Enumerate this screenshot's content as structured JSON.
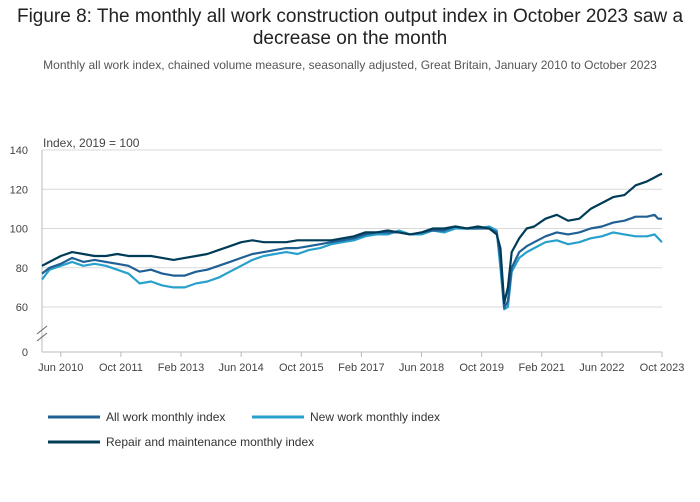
{
  "title": "Figure 8: The monthly all work construction output index in October 2023 saw a decrease on the month",
  "subtitle": "Monthly all work index, chained volume measure, seasonally adjusted, Great Britain, January 2010 to October 2023",
  "chart_data": {
    "type": "line",
    "ylabel": "Index, 2019 = 100",
    "ylim": [
      0,
      140
    ],
    "axis_break": [
      0,
      50
    ],
    "yticks": [
      0,
      60,
      80,
      100,
      120,
      140
    ],
    "x_start": "2010-01",
    "x_end": "2023-10",
    "xtick_labels": [
      "Jun 2010",
      "Oct 2011",
      "Feb 2013",
      "Jun 2014",
      "Oct 2015",
      "Feb 2017",
      "Jun 2018",
      "Oct 2019",
      "Feb 2021",
      "Jun 2022",
      "Oct 2023"
    ],
    "grid": "horizontal",
    "legend_position": "bottom",
    "series": [
      {
        "name": "All work monthly index",
        "color": "#206095",
        "points": [
          [
            "2010-01",
            77
          ],
          [
            "2010-03",
            80
          ],
          [
            "2010-06",
            82
          ],
          [
            "2010-09",
            85
          ],
          [
            "2010-12",
            83
          ],
          [
            "2011-03",
            84
          ],
          [
            "2011-06",
            83
          ],
          [
            "2011-09",
            82
          ],
          [
            "2011-12",
            81
          ],
          [
            "2012-03",
            78
          ],
          [
            "2012-06",
            79
          ],
          [
            "2012-09",
            77
          ],
          [
            "2012-12",
            76
          ],
          [
            "2013-03",
            76
          ],
          [
            "2013-06",
            78
          ],
          [
            "2013-09",
            79
          ],
          [
            "2013-12",
            81
          ],
          [
            "2014-03",
            83
          ],
          [
            "2014-06",
            85
          ],
          [
            "2014-09",
            87
          ],
          [
            "2014-12",
            88
          ],
          [
            "2015-03",
            89
          ],
          [
            "2015-06",
            90
          ],
          [
            "2015-09",
            90
          ],
          [
            "2015-12",
            91
          ],
          [
            "2016-03",
            92
          ],
          [
            "2016-06",
            93
          ],
          [
            "2016-09",
            94
          ],
          [
            "2016-12",
            95
          ],
          [
            "2017-03",
            97
          ],
          [
            "2017-06",
            98
          ],
          [
            "2017-09",
            98
          ],
          [
            "2017-12",
            98
          ],
          [
            "2018-03",
            97
          ],
          [
            "2018-06",
            98
          ],
          [
            "2018-09",
            99
          ],
          [
            "2018-12",
            99
          ],
          [
            "2019-03",
            101
          ],
          [
            "2019-06",
            100
          ],
          [
            "2019-09",
            100
          ],
          [
            "2019-12",
            100
          ],
          [
            "2020-02",
            98
          ],
          [
            "2020-03",
            85
          ],
          [
            "2020-04",
            58
          ],
          [
            "2020-05",
            63
          ],
          [
            "2020-06",
            80
          ],
          [
            "2020-08",
            88
          ],
          [
            "2020-10",
            91
          ],
          [
            "2020-12",
            93
          ],
          [
            "2021-03",
            96
          ],
          [
            "2021-06",
            98
          ],
          [
            "2021-09",
            97
          ],
          [
            "2021-12",
            98
          ],
          [
            "2022-03",
            100
          ],
          [
            "2022-06",
            101
          ],
          [
            "2022-09",
            103
          ],
          [
            "2022-12",
            104
          ],
          [
            "2023-03",
            106
          ],
          [
            "2023-06",
            106
          ],
          [
            "2023-08",
            107
          ],
          [
            "2023-09",
            105
          ],
          [
            "2023-10",
            105
          ]
        ]
      },
      {
        "name": "New work monthly index",
        "color": "#27a0cc",
        "points": [
          [
            "2010-01",
            74
          ],
          [
            "2010-03",
            79
          ],
          [
            "2010-06",
            81
          ],
          [
            "2010-09",
            83
          ],
          [
            "2010-12",
            81
          ],
          [
            "2011-03",
            82
          ],
          [
            "2011-06",
            81
          ],
          [
            "2011-09",
            79
          ],
          [
            "2011-12",
            77
          ],
          [
            "2012-03",
            72
          ],
          [
            "2012-06",
            73
          ],
          [
            "2012-09",
            71
          ],
          [
            "2012-12",
            70
          ],
          [
            "2013-03",
            70
          ],
          [
            "2013-06",
            72
          ],
          [
            "2013-09",
            73
          ],
          [
            "2013-12",
            75
          ],
          [
            "2014-03",
            78
          ],
          [
            "2014-06",
            81
          ],
          [
            "2014-09",
            84
          ],
          [
            "2014-12",
            86
          ],
          [
            "2015-03",
            87
          ],
          [
            "2015-06",
            88
          ],
          [
            "2015-09",
            87
          ],
          [
            "2015-12",
            89
          ],
          [
            "2016-03",
            90
          ],
          [
            "2016-06",
            92
          ],
          [
            "2016-09",
            93
          ],
          [
            "2016-12",
            94
          ],
          [
            "2017-03",
            96
          ],
          [
            "2017-06",
            97
          ],
          [
            "2017-09",
            97
          ],
          [
            "2017-12",
            99
          ],
          [
            "2018-03",
            97
          ],
          [
            "2018-06",
            97
          ],
          [
            "2018-09",
            99
          ],
          [
            "2018-12",
            98
          ],
          [
            "2019-03",
            100
          ],
          [
            "2019-06",
            100
          ],
          [
            "2019-09",
            100
          ],
          [
            "2019-12",
            101
          ],
          [
            "2020-02",
            99
          ],
          [
            "2020-03",
            80
          ],
          [
            "2020-04",
            54
          ],
          [
            "2020-05",
            60
          ],
          [
            "2020-06",
            78
          ],
          [
            "2020-08",
            85
          ],
          [
            "2020-10",
            88
          ],
          [
            "2020-12",
            90
          ],
          [
            "2021-03",
            93
          ],
          [
            "2021-06",
            94
          ],
          [
            "2021-09",
            92
          ],
          [
            "2021-12",
            93
          ],
          [
            "2022-03",
            95
          ],
          [
            "2022-06",
            96
          ],
          [
            "2022-09",
            98
          ],
          [
            "2022-12",
            97
          ],
          [
            "2023-03",
            96
          ],
          [
            "2023-06",
            96
          ],
          [
            "2023-08",
            97
          ],
          [
            "2023-09",
            95
          ],
          [
            "2023-10",
            93
          ]
        ]
      },
      {
        "name": "Repair and maintenance monthly index",
        "color": "#003c57",
        "points": [
          [
            "2010-01",
            81
          ],
          [
            "2010-03",
            83
          ],
          [
            "2010-06",
            86
          ],
          [
            "2010-09",
            88
          ],
          [
            "2010-12",
            87
          ],
          [
            "2011-03",
            86
          ],
          [
            "2011-06",
            86
          ],
          [
            "2011-09",
            87
          ],
          [
            "2011-12",
            86
          ],
          [
            "2012-03",
            86
          ],
          [
            "2012-06",
            86
          ],
          [
            "2012-09",
            85
          ],
          [
            "2012-12",
            84
          ],
          [
            "2013-03",
            85
          ],
          [
            "2013-06",
            86
          ],
          [
            "2013-09",
            87
          ],
          [
            "2013-12",
            89
          ],
          [
            "2014-03",
            91
          ],
          [
            "2014-06",
            93
          ],
          [
            "2014-09",
            94
          ],
          [
            "2014-12",
            93
          ],
          [
            "2015-03",
            93
          ],
          [
            "2015-06",
            93
          ],
          [
            "2015-09",
            94
          ],
          [
            "2015-12",
            94
          ],
          [
            "2016-03",
            94
          ],
          [
            "2016-06",
            94
          ],
          [
            "2016-09",
            95
          ],
          [
            "2016-12",
            96
          ],
          [
            "2017-03",
            98
          ],
          [
            "2017-06",
            98
          ],
          [
            "2017-09",
            99
          ],
          [
            "2017-12",
            98
          ],
          [
            "2018-03",
            97
          ],
          [
            "2018-06",
            98
          ],
          [
            "2018-09",
            100
          ],
          [
            "2018-12",
            100
          ],
          [
            "2019-03",
            101
          ],
          [
            "2019-06",
            100
          ],
          [
            "2019-09",
            101
          ],
          [
            "2019-12",
            100
          ],
          [
            "2020-02",
            97
          ],
          [
            "2020-03",
            90
          ],
          [
            "2020-04",
            62
          ],
          [
            "2020-05",
            70
          ],
          [
            "2020-06",
            88
          ],
          [
            "2020-08",
            95
          ],
          [
            "2020-10",
            100
          ],
          [
            "2020-12",
            101
          ],
          [
            "2021-03",
            105
          ],
          [
            "2021-06",
            107
          ],
          [
            "2021-09",
            104
          ],
          [
            "2021-12",
            105
          ],
          [
            "2022-03",
            110
          ],
          [
            "2022-06",
            113
          ],
          [
            "2022-09",
            116
          ],
          [
            "2022-12",
            117
          ],
          [
            "2023-03",
            122
          ],
          [
            "2023-06",
            124
          ],
          [
            "2023-08",
            126
          ],
          [
            "2023-09",
            127
          ],
          [
            "2023-10",
            128
          ]
        ]
      }
    ]
  }
}
